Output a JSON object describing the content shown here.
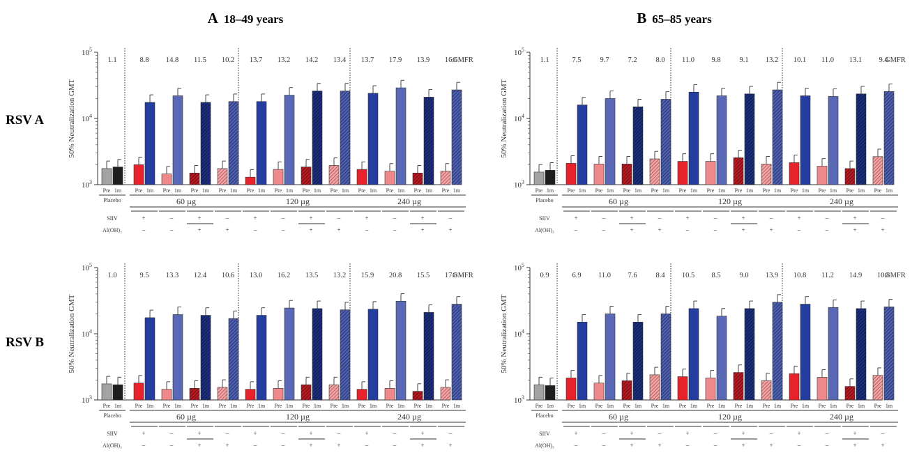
{
  "figure": {
    "columns": [
      {
        "letter": "A",
        "label": "18–49 years"
      },
      {
        "letter": "B",
        "label": "65–85 years"
      }
    ],
    "rows": [
      "RSV A",
      "RSV B"
    ],
    "ylabel": "50% Neutralization GMT",
    "gmfr_label": "GMFR",
    "placebo_label": "Placebo",
    "timepoints": [
      "Pre",
      "1m"
    ],
    "doses": [
      "60 µg",
      "120 µg",
      "240 µg"
    ],
    "siiv_label": "SIIV",
    "aloh_label": "Al(OH)₃",
    "siiv_signs": [
      "+",
      "–",
      "+",
      "–"
    ],
    "aloh_signs": [
      "–",
      "–",
      "+",
      "+"
    ],
    "y_ticks": [
      {
        "base": "10",
        "exp": "3"
      },
      {
        "base": "10",
        "exp": "4"
      },
      {
        "base": "10",
        "exp": "5"
      }
    ]
  },
  "chart_data": [
    {
      "type": "bar",
      "column": "A 18–49 years",
      "row": "RSV A",
      "yscale": "log",
      "ylim": [
        1000,
        100000
      ],
      "gmfr": [
        "1.1",
        "8.8",
        "14.8",
        "11.5",
        "10.2",
        "13.7",
        "13.2",
        "14.2",
        "13.4",
        "13.7",
        "17.9",
        "13.9",
        "16.6"
      ],
      "pre": [
        1750,
        2000,
        1450,
        1500,
        1750,
        1300,
        1700,
        1850,
        1950,
        1700,
        1600,
        1500,
        1600
      ],
      "post": [
        1850,
        17500,
        22000,
        17500,
        18000,
        18000,
        22500,
        26000,
        26000,
        24000,
        29000,
        21000,
        27000
      ]
    },
    {
      "type": "bar",
      "column": "B 65–85 years",
      "row": "RSV A",
      "yscale": "log",
      "ylim": [
        1000,
        100000
      ],
      "gmfr": [
        "1.1",
        "7.5",
        "9.7",
        "7.2",
        "8.0",
        "11.0",
        "9.8",
        "9.1",
        "13.2",
        "10.1",
        "11.0",
        "13.1",
        "9.4"
      ],
      "pre": [
        1550,
        2100,
        2050,
        2050,
        2450,
        2250,
        2250,
        2550,
        2050,
        2150,
        1900,
        1750,
        2650
      ],
      "post": [
        1650,
        16000,
        20000,
        15000,
        19500,
        25000,
        22000,
        23500,
        27000,
        22000,
        21500,
        23500,
        25500
      ]
    },
    {
      "type": "bar",
      "column": "A 18–49 years",
      "row": "RSV B",
      "yscale": "log",
      "ylim": [
        1000,
        100000
      ],
      "gmfr": [
        "1.0",
        "9.5",
        "13.3",
        "12.4",
        "10.6",
        "13.0",
        "16.2",
        "13.5",
        "13.2",
        "15.9",
        "20.8",
        "15.5",
        "17.8"
      ],
      "pre": [
        1750,
        1800,
        1450,
        1500,
        1550,
        1450,
        1500,
        1700,
        1700,
        1450,
        1500,
        1350,
        1550
      ],
      "post": [
        1700,
        17500,
        19500,
        19000,
        17000,
        19000,
        24500,
        24000,
        23000,
        23500,
        31000,
        21000,
        28000
      ]
    },
    {
      "type": "bar",
      "column": "B 65–85 years",
      "row": "RSV B",
      "yscale": "log",
      "ylim": [
        1000,
        100000
      ],
      "gmfr": [
        "0.9",
        "6.9",
        "11.0",
        "7.6",
        "8.4",
        "10.5",
        "8.5",
        "9.0",
        "13.9",
        "10.8",
        "11.2",
        "14.9",
        "10.8"
      ],
      "pre": [
        1700,
        2150,
        1800,
        1950,
        2400,
        2250,
        2150,
        2600,
        1950,
        2500,
        2200,
        1600,
        2350
      ],
      "post": [
        1650,
        15000,
        20000,
        15000,
        20000,
        24000,
        18500,
        24000,
        30000,
        28000,
        25000,
        24000,
        25500
      ]
    }
  ],
  "colors": {
    "placebo_pre": "#a3a3a3",
    "placebo_post": "#1e1e1e",
    "pre_siiv": "#e8222a",
    "pre_plain": "#f0898b",
    "post_siiv": "#233e9e",
    "post_plain": "#5a69b5"
  }
}
